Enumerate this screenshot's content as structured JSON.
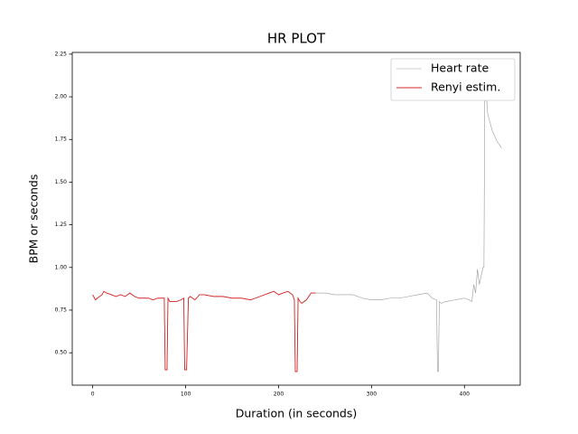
{
  "chart_data": {
    "type": "line",
    "title": "HR PLOT",
    "x_label": "Duration (in seconds)",
    "y_label": "BPM or seconds",
    "x": [
      0,
      3,
      5,
      10,
      12,
      15,
      20,
      25,
      30,
      35,
      40,
      45,
      50,
      55,
      60,
      65,
      70,
      75,
      77,
      78,
      80,
      81,
      83,
      85,
      90,
      95,
      98,
      99,
      100,
      101,
      103,
      105,
      110,
      115,
      120,
      130,
      140,
      150,
      160,
      170,
      180,
      190,
      195,
      200,
      205,
      210,
      215,
      217,
      218,
      220,
      221,
      223,
      225,
      230,
      235,
      240,
      250,
      260,
      270,
      280,
      290,
      300,
      310,
      320,
      330,
      340,
      350,
      360,
      365,
      370,
      371,
      372,
      373,
      375,
      380,
      390,
      400,
      405,
      408,
      410,
      412,
      414,
      416,
      418,
      420,
      421,
      422,
      423,
      425,
      430,
      435,
      440
    ],
    "series": [
      {
        "name": "Heart rate",
        "color": "#999999",
        "values": [
          0.84,
          0.81,
          0.82,
          0.84,
          0.86,
          0.85,
          0.84,
          0.83,
          0.84,
          0.83,
          0.85,
          0.83,
          0.82,
          0.82,
          0.82,
          0.81,
          0.82,
          0.82,
          0.82,
          0.4,
          0.4,
          0.82,
          0.8,
          0.8,
          0.8,
          0.81,
          0.82,
          0.4,
          0.4,
          0.4,
          0.82,
          0.83,
          0.81,
          0.84,
          0.84,
          0.83,
          0.83,
          0.82,
          0.82,
          0.81,
          0.83,
          0.85,
          0.86,
          0.84,
          0.85,
          0.86,
          0.84,
          0.81,
          0.39,
          0.39,
          0.82,
          0.8,
          0.79,
          0.81,
          0.85,
          0.85,
          0.85,
          0.84,
          0.84,
          0.84,
          0.82,
          0.81,
          0.81,
          0.82,
          0.82,
          0.83,
          0.84,
          0.85,
          0.82,
          0.81,
          0.39,
          0.39,
          0.8,
          0.79,
          0.8,
          0.81,
          0.82,
          0.81,
          0.8,
          0.9,
          0.85,
          0.99,
          0.9,
          0.95,
          1.0,
          1.0,
          2.2,
          2.05,
          1.9,
          1.8,
          1.74,
          1.7
        ]
      },
      {
        "name": "Renyi estim.",
        "color": "#d62728",
        "values": [
          0.84,
          0.81,
          0.82,
          0.84,
          0.86,
          0.85,
          0.84,
          0.83,
          0.84,
          0.83,
          0.85,
          0.83,
          0.82,
          0.82,
          0.82,
          0.81,
          0.82,
          0.82,
          0.82,
          0.4,
          0.4,
          0.82,
          0.8,
          0.8,
          0.8,
          0.81,
          0.82,
          0.4,
          0.4,
          0.4,
          0.82,
          0.83,
          0.81,
          0.84,
          0.84,
          0.83,
          0.83,
          0.82,
          0.82,
          0.81,
          0.83,
          0.85,
          0.86,
          0.84,
          0.85,
          0.86,
          0.84,
          0.81,
          0.39,
          0.39,
          0.82,
          0.8,
          0.79,
          0.81,
          0.85,
          0.85,
          null,
          null,
          null,
          null,
          null,
          null,
          null,
          null,
          null,
          null,
          null,
          null,
          null,
          null,
          null,
          null,
          null,
          null,
          null,
          null,
          null,
          null,
          null,
          null,
          null,
          null,
          null,
          null,
          null,
          null,
          null,
          null,
          null,
          null,
          null,
          null
        ]
      }
    ],
    "xlim": [
      -22,
      460
    ],
    "ylim": [
      0.31,
      2.26
    ],
    "xticks": [
      0,
      100,
      200,
      300,
      400
    ],
    "yticks": [
      {
        "value": 0.5,
        "label": "0.50"
      },
      {
        "value": 0.75,
        "label": "0.75"
      },
      {
        "value": 1.0,
        "label": "1.00"
      },
      {
        "value": 1.25,
        "label": "1.25"
      },
      {
        "value": 1.5,
        "label": "1.50"
      },
      {
        "value": 1.75,
        "label": "1.75"
      },
      {
        "value": 2.0,
        "label": "2.00"
      },
      {
        "value": 2.25,
        "label": "2.25"
      }
    ],
    "legend": "upper right"
  }
}
